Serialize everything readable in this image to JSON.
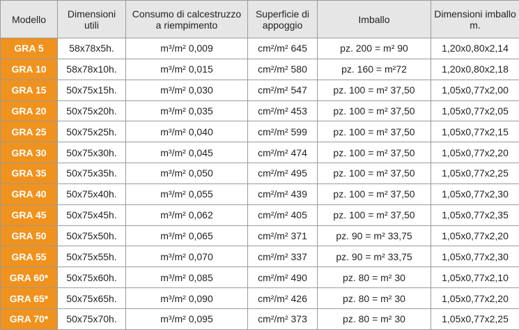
{
  "table": {
    "header": [
      "Modello",
      "Dimensioni utili",
      "Consumo di calcestruzzo a riempimento",
      "Superficie di appoggio",
      "Imballo",
      "Dimensioni imballo m."
    ],
    "rows": [
      [
        "GRA 5",
        "58x78x5h.",
        "m³/m² 0,009",
        "cm²/m² 645",
        "pz. 200 = m² 90",
        "1,20x0,80x2,14"
      ],
      [
        "GRA 10",
        "58x78x10h.",
        "m³/m² 0,015",
        "cm²/m² 580",
        "pz. 160 = m²72",
        "1,20x0,80x2,18"
      ],
      [
        "GRA 15",
        "50x75x15h.",
        "m³/m² 0,030",
        "cm²/m² 547",
        "pz. 100 = m² 37,50",
        "1,05x0,77x2,00"
      ],
      [
        "GRA 20",
        "50x75x20h.",
        "m³/m² 0,035",
        "cm²/m² 453",
        "pz. 100 = m² 37,50",
        "1,05x0,77x2,05"
      ],
      [
        "GRA 25",
        "50x75x25h.",
        "m³/m² 0,040",
        "cm²/m² 599",
        "pz. 100 = m² 37,50",
        "1,05x0,77x2,15"
      ],
      [
        "GRA 30",
        "50x75x30h.",
        "m³/m² 0,045",
        "cm²/m² 474",
        "pz. 100 = m² 37,50",
        "1,05x0,77x2,20"
      ],
      [
        "GRA 35",
        "50x75x35h.",
        "m³/m² 0,050",
        "cm²/m² 495",
        "pz. 100 = m² 37,50",
        "1,05x0,77x2,25"
      ],
      [
        "GRA 40",
        "50x75x40h.",
        "m³/m² 0,055",
        "cm²/m² 439",
        "pz. 100 = m² 37,50",
        "1,05x0,77x2,30"
      ],
      [
        "GRA 45",
        "50x75x45h.",
        "m³/m² 0,062",
        "cm²/m² 405",
        "pz. 100 = m² 37,50",
        "1,05x0,77x2,35"
      ],
      [
        "GRA 50",
        "50x75x50h.",
        "m³/m² 0,065",
        "cm²/m² 371",
        "pz. 90 = m² 33,75",
        "1,05x0,77x2,20"
      ],
      [
        "GRA 55",
        "50x75x55h.",
        "m³/m² 0,070",
        "cm²/m² 337",
        "pz. 90 = m² 33,75",
        "1,05x0,77x2,30"
      ],
      [
        "GRA 60*",
        "50x75x60h.",
        "m³/m² 0,085",
        "cm²/m² 490",
        "pz. 80 = m² 30",
        "1,05x0,77x2,10"
      ],
      [
        "GRA 65*",
        "50x75x65h.",
        "m³/m² 0,090",
        "cm²/m² 426",
        "pz. 80 = m² 30",
        "1,05x0,77x2,20"
      ],
      [
        "GRA 70*",
        "50x75x70h.",
        "m³/m² 0,095",
        "cm²/m² 373",
        "pz. 80 = m² 30",
        "1,05x0,77x2,25"
      ]
    ]
  }
}
